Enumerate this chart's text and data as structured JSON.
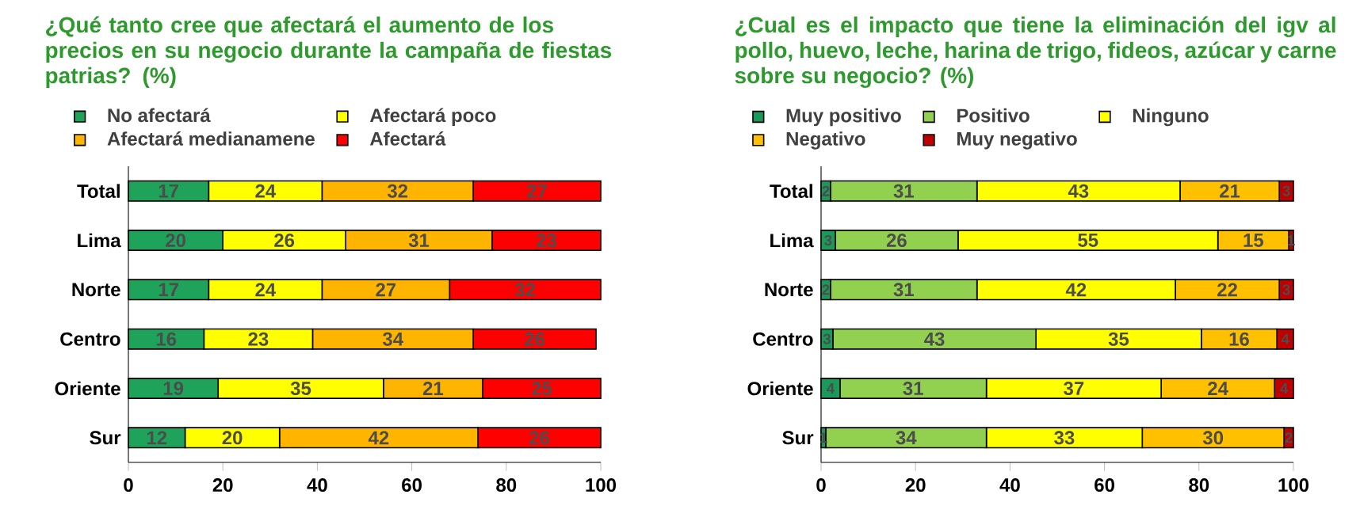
{
  "chart_data": [
    {
      "type": "bar",
      "orientation": "horizontal",
      "stacked": true,
      "title": "¿Qué tanto cree que afectará el aumento de los precios en su negocio durante la campaña de fiestas patrias? (%)",
      "categories": [
        "Total",
        "Lima",
        "Norte",
        "Centro",
        "Oriente",
        "Sur"
      ],
      "series": [
        {
          "name": "No afectará",
          "color": "#1fa35a",
          "values": [
            17,
            20,
            17,
            16,
            19,
            12
          ]
        },
        {
          "name": "Afectará poco",
          "color": "#ffff00",
          "values": [
            24,
            26,
            24,
            23,
            35,
            20
          ]
        },
        {
          "name": "Afectará medianamene",
          "color": "#ffb400",
          "values": [
            32,
            31,
            27,
            34,
            21,
            42
          ]
        },
        {
          "name": "Afectará",
          "color": "#ff0000",
          "values": [
            27,
            23,
            32,
            26,
            25,
            26
          ]
        }
      ],
      "xlim": [
        0,
        100
      ],
      "xticks": [
        0,
        20,
        40,
        60,
        80,
        100
      ],
      "data_labels": true,
      "legend": "top"
    },
    {
      "type": "bar",
      "orientation": "horizontal",
      "stacked": true,
      "title": "¿Cual es el impacto que tiene la eliminación del igv al pollo, huevo, leche, harina de trigo, fideos, azúcar y carne sobre su negocio? (%)",
      "categories": [
        "Total",
        "Lima",
        "Norte",
        "Centro",
        "Oriente",
        "Sur"
      ],
      "series": [
        {
          "name": "Muy positivo",
          "color": "#1a9a5a",
          "values": [
            2,
            3,
            2,
            2.5,
            4,
            1
          ],
          "value_labels": [
            "2",
            "3",
            "2",
            "3",
            "4",
            "1"
          ]
        },
        {
          "name": "Positivo",
          "color": "#92d050",
          "values": [
            31,
            26,
            31,
            43,
            31,
            34
          ],
          "value_labels": [
            "31",
            "26",
            "31",
            "43",
            "31",
            "34"
          ]
        },
        {
          "name": "Ninguno",
          "color": "#ffff00",
          "values": [
            43,
            55,
            42,
            35,
            37,
            33
          ],
          "value_labels": [
            "43",
            "55",
            "42",
            "35",
            "37",
            "33"
          ]
        },
        {
          "name": "Negativo",
          "color": "#ffc000",
          "values": [
            21,
            15,
            22,
            16,
            24,
            30
          ],
          "value_labels": [
            "21",
            "15",
            "22",
            "16",
            "24",
            "30"
          ]
        },
        {
          "name": "Muy negativo",
          "color": "#c00000",
          "values": [
            3,
            1,
            3,
            3.5,
            4,
            2
          ],
          "value_labels": [
            "3",
            "1",
            "3",
            "4",
            "4",
            "2"
          ]
        }
      ],
      "xlim": [
        0,
        100
      ],
      "xticks": [
        0,
        20,
        40,
        60,
        80,
        100
      ],
      "legend": "top"
    }
  ]
}
